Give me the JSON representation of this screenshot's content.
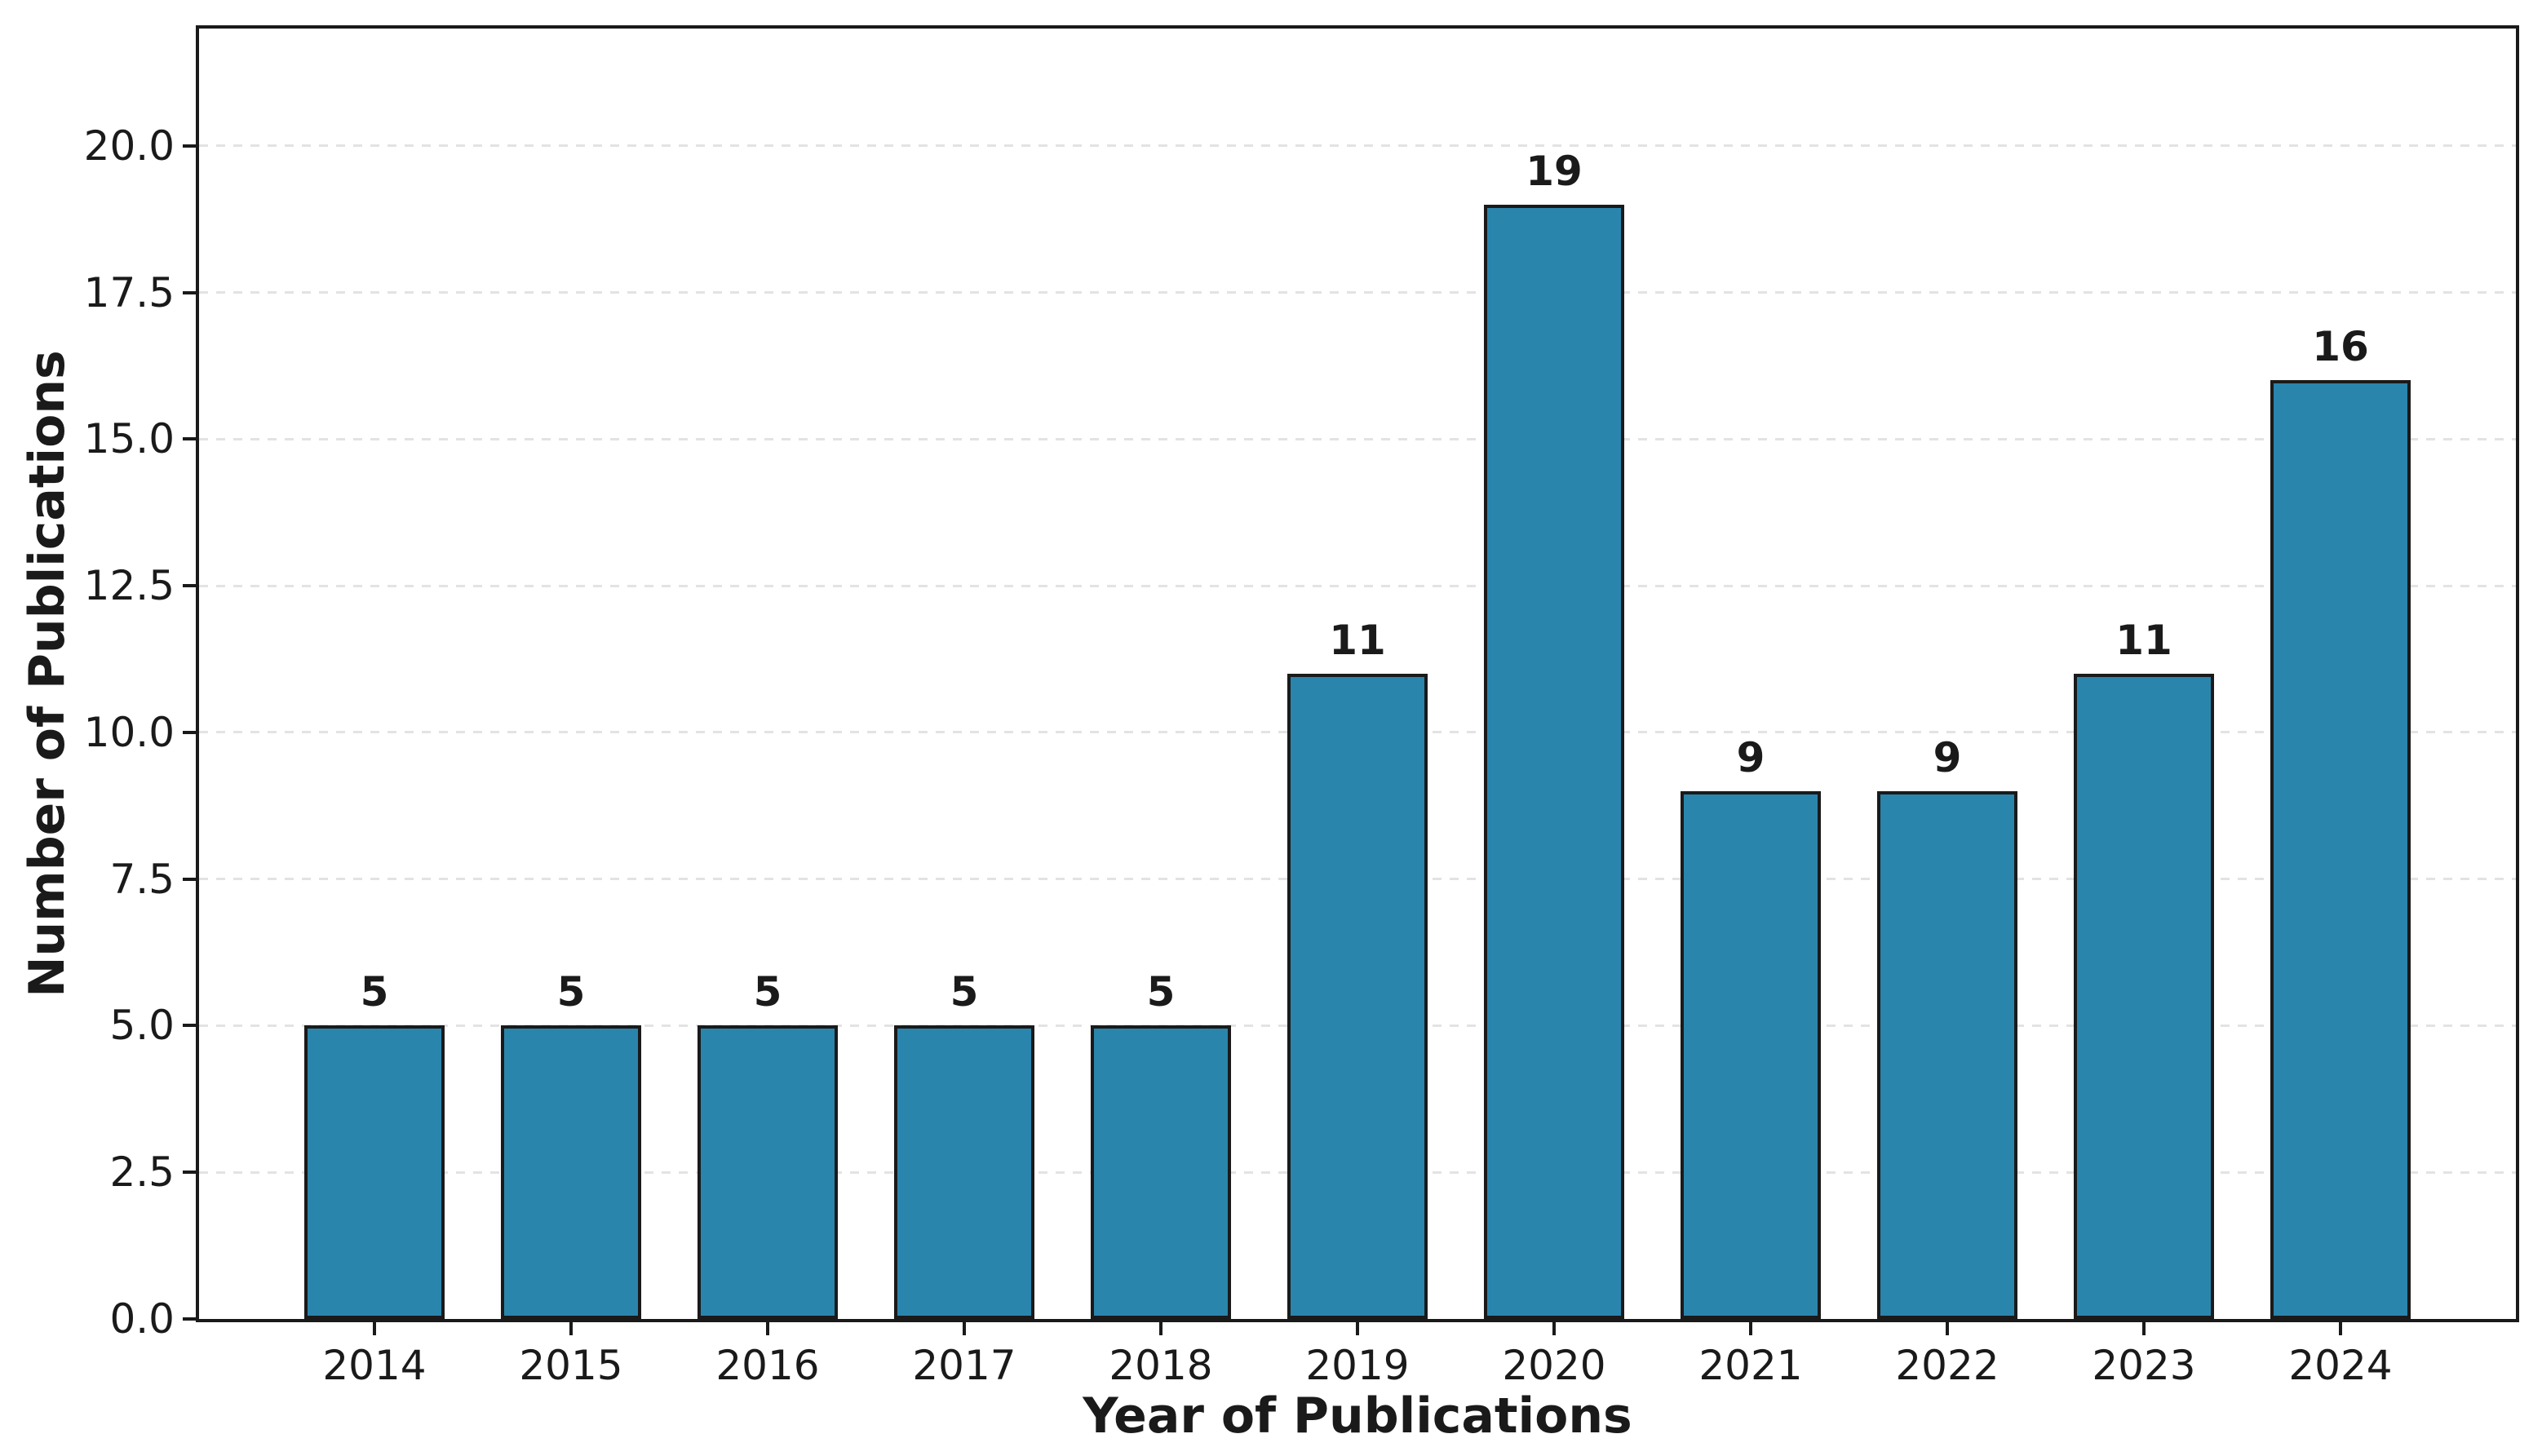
{
  "chart_data": {
    "type": "bar",
    "title": "",
    "xlabel": "Year of Publications",
    "ylabel": "Number of Publications",
    "categories": [
      "2014",
      "2015",
      "2016",
      "2017",
      "2018",
      "2019",
      "2020",
      "2021",
      "2022",
      "2023",
      "2024"
    ],
    "values": [
      5,
      5,
      5,
      5,
      5,
      11,
      19,
      9,
      9,
      11,
      16
    ],
    "bar_value_labels": [
      "5",
      "5",
      "5",
      "5",
      "5",
      "11",
      "19",
      "9",
      "9",
      "11",
      "16"
    ],
    "ylim": [
      0,
      22
    ],
    "yticks": [
      0.0,
      2.5,
      5.0,
      7.5,
      10.0,
      12.5,
      15.0,
      17.5,
      20.0
    ],
    "ytick_labels": [
      "0.0",
      "2.5",
      "5.0",
      "7.5",
      "10.0",
      "12.5",
      "15.0",
      "17.5",
      "20.0"
    ],
    "grid": "horizontal-dashed",
    "legend_position": "none",
    "colors": {
      "bar_fill": "#2a85ad",
      "bar_edge": "#1a1a1a",
      "grid": "#e3e3e3",
      "spine": "#1a1a1a",
      "text": "#1a1a1a",
      "background": "#ffffff"
    }
  }
}
